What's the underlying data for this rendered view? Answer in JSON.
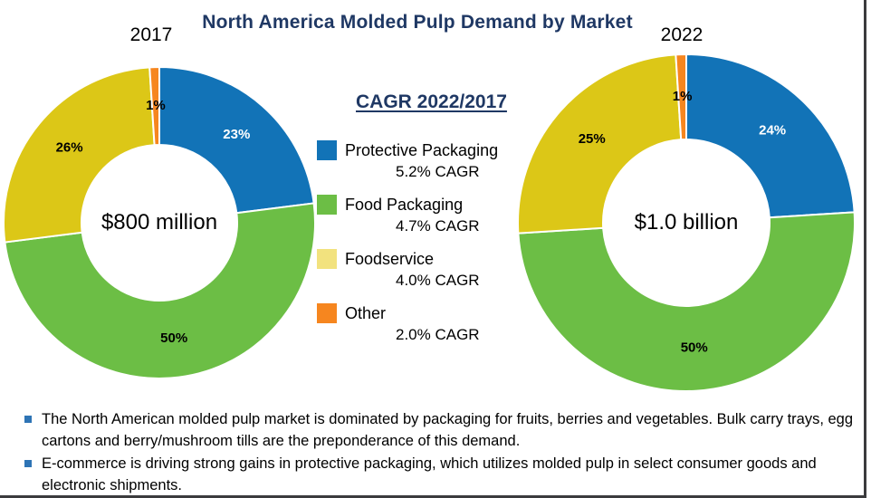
{
  "title": "North America Molded Pulp Demand by Market",
  "legend": {
    "title": "CAGR 2022/2017",
    "items": [
      {
        "label": "Protective Packaging",
        "cagr": "5.2% CAGR",
        "color": "#1273B7"
      },
      {
        "label": "Food Packaging",
        "cagr": "4.7% CAGR",
        "color": "#6CBE45"
      },
      {
        "label": "Foodservice",
        "cagr": "4.0% CAGR",
        "color": "#F2E27E"
      },
      {
        "label": "Other",
        "cagr": "2.0% CAGR",
        "color": "#F6861F"
      }
    ]
  },
  "chart_data": [
    {
      "type": "pie",
      "donut": true,
      "title": "2017",
      "center_label": "$800 million",
      "labels": [
        "Protective Packaging",
        "Food Packaging",
        "Foodservice",
        "Other"
      ],
      "values": [
        23,
        50,
        26,
        1
      ],
      "value_labels": [
        "23%",
        "50%",
        "26%",
        "1%"
      ],
      "colors": [
        "#1273B7",
        "#6CBE45",
        "#DCC717",
        "#F6861F"
      ],
      "value_label_colors": [
        "#FFFFFF",
        "#000000",
        "#000000",
        "#000000"
      ],
      "start_angle_deg": 0,
      "direction": "clockwise",
      "legend_position": "center"
    },
    {
      "type": "pie",
      "donut": true,
      "title": "2022",
      "center_label": "$1.0 billion",
      "labels": [
        "Protective Packaging",
        "Food Packaging",
        "Foodservice",
        "Other"
      ],
      "values": [
        24,
        50,
        25,
        1
      ],
      "value_labels": [
        "24%",
        "50%",
        "25%",
        "1%"
      ],
      "colors": [
        "#1273B7",
        "#6CBE45",
        "#DCC717",
        "#F6861F"
      ],
      "value_label_colors": [
        "#FFFFFF",
        "#000000",
        "#000000",
        "#000000"
      ],
      "start_angle_deg": 0,
      "direction": "clockwise",
      "legend_position": "center"
    }
  ],
  "bullets": [
    "The North American molded pulp market is dominated by packaging for fruits, berries and vegetables. Bulk carry trays, egg cartons and berry/mushroom tills are the preponderance of this demand.",
    "E-commerce is driving strong gains in protective packaging, which utilizes molded pulp in select consumer goods and electronic shipments."
  ],
  "colors": {
    "title": "#1F3864",
    "border": "#3B3B3D",
    "bullet_marker": "#2E74B5",
    "slice_separator": "#FFFFFF"
  }
}
